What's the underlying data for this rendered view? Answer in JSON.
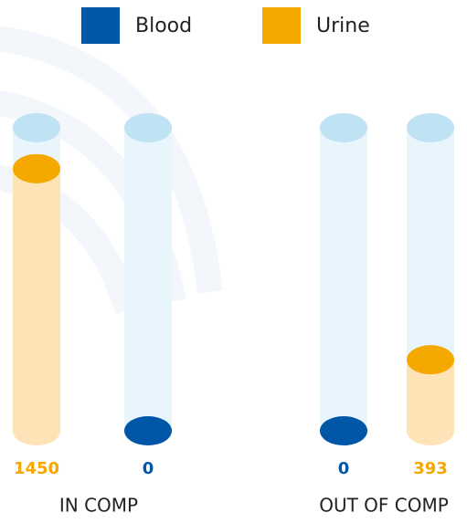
{
  "chart_data": {
    "type": "cylinder-bar",
    "categories": [
      "IN COMP",
      "OUT OF COMP"
    ],
    "series": [
      {
        "name": "Blood",
        "color": "#0057a8",
        "values": [
          0,
          0
        ]
      },
      {
        "name": "Urine",
        "color": "#f5a800",
        "values": [
          1450,
          393
        ]
      }
    ]
  }
}
